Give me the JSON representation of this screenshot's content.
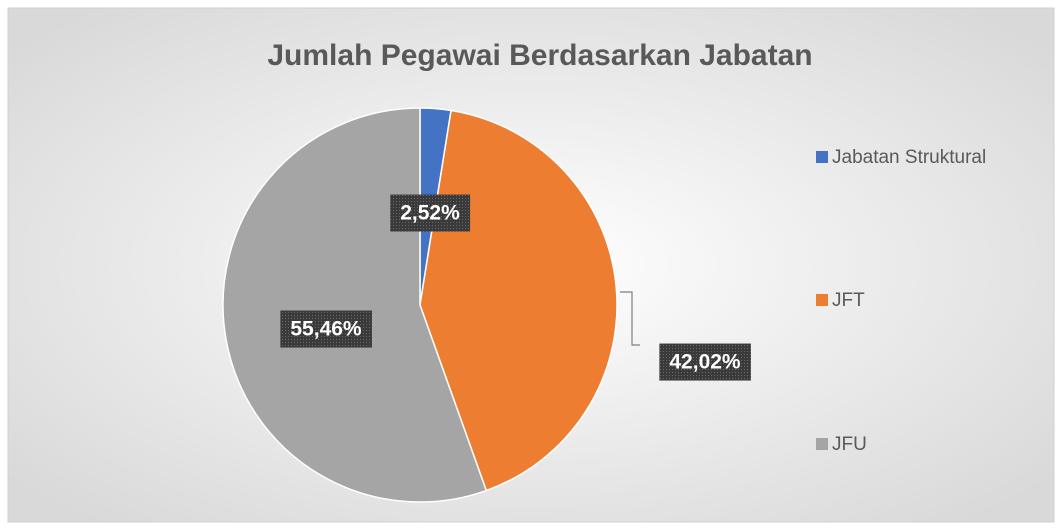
{
  "chart_data": {
    "type": "pie",
    "title": "Jumlah Pegawai Berdasarkan Jabatan",
    "categories": [
      "Jabatan Struktural",
      "JFT",
      "JFU"
    ],
    "values": [
      2.52,
      42.02,
      55.46
    ],
    "value_labels": [
      "2,52%",
      "42,02%",
      "55,46%"
    ],
    "colors": [
      "#4472c4",
      "#ed7d31",
      "#a5a5a5"
    ],
    "legend": "right"
  }
}
